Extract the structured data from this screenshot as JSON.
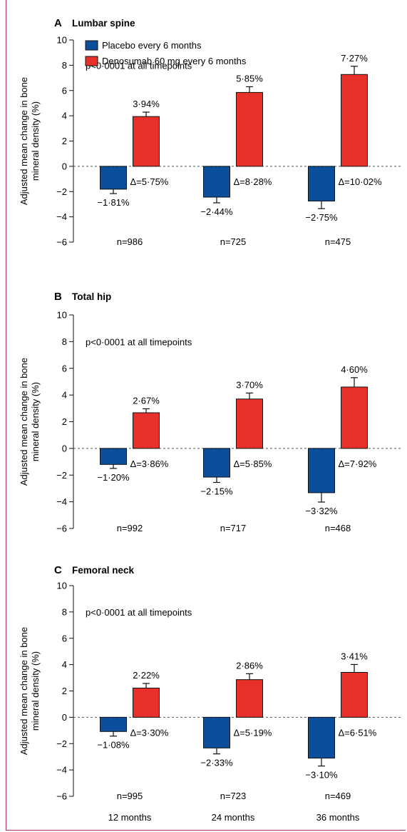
{
  "colors": {
    "placebo": "#0b4f9c",
    "denosumab": "#e8302a",
    "frame": "#b0306a"
  },
  "legend": {
    "placebo": "Placebo every 6 months",
    "denosumab": "Denosumab 60 mg every 6 months"
  },
  "ylabel": "Adjusted mean change in bone mineral density (%)",
  "x_labels": [
    "12 months",
    "24 months",
    "36 months"
  ],
  "chart_data": [
    {
      "type": "bar",
      "letter": "A",
      "title": "Lumbar spine",
      "annotation": "p<0·0001 at all timepoints",
      "categories": [
        "12 months",
        "24 months",
        "36 months"
      ],
      "ylim": [
        -6,
        10
      ],
      "yticks": [
        "−6",
        "−4",
        "−2",
        "0",
        "2",
        "4",
        "6",
        "8",
        "10"
      ],
      "series": [
        {
          "name": "Placebo every 6 months",
          "values": [
            -1.81,
            -2.44,
            -2.75
          ],
          "errors": [
            0.35,
            0.45,
            0.6
          ],
          "labels": [
            "−1·81%",
            "−2·44%",
            "−2·75%"
          ]
        },
        {
          "name": "Denosumab 60 mg every 6 months",
          "values": [
            3.94,
            5.85,
            7.27
          ],
          "errors": [
            0.35,
            0.45,
            0.65
          ],
          "labels": [
            "3·94%",
            "5·85%",
            "7·27%"
          ]
        }
      ],
      "deltas": [
        "Δ=5·75%",
        "Δ=8·28%",
        "Δ=10·02%"
      ],
      "n": [
        "n=986",
        "n=725",
        "n=475"
      ]
    },
    {
      "type": "bar",
      "letter": "B",
      "title": "Total hip",
      "annotation": "p<0·0001 at all timepoints",
      "categories": [
        "12 months",
        "24 months",
        "36 months"
      ],
      "ylim": [
        -6,
        10
      ],
      "yticks": [
        "−6",
        "−4",
        "−2",
        "0",
        "2",
        "4",
        "6",
        "8",
        "10"
      ],
      "series": [
        {
          "name": "Placebo every 6 months",
          "values": [
            -1.2,
            -2.15,
            -3.32
          ],
          "errors": [
            0.3,
            0.4,
            0.7
          ],
          "labels": [
            "−1·20%",
            "−2·15%",
            "−3·32%"
          ]
        },
        {
          "name": "Denosumab 60 mg every 6 months",
          "values": [
            2.67,
            3.7,
            4.6
          ],
          "errors": [
            0.3,
            0.45,
            0.7
          ],
          "labels": [
            "2·67%",
            "3·70%",
            "4·60%"
          ]
        }
      ],
      "deltas": [
        "Δ=3·86%",
        "Δ=5·85%",
        "Δ=7·92%"
      ],
      "n": [
        "n=992",
        "n=717",
        "n=468"
      ]
    },
    {
      "type": "bar",
      "letter": "C",
      "title": "Femoral neck",
      "annotation": "p<0·0001 at all timepoints",
      "categories": [
        "12 months",
        "24 months",
        "36 months"
      ],
      "ylim": [
        -6,
        10
      ],
      "yticks": [
        "−6",
        "−4",
        "−2",
        "0",
        "2",
        "4",
        "6",
        "8",
        "10"
      ],
      "series": [
        {
          "name": "Placebo every 6 months",
          "values": [
            -1.08,
            -2.33,
            -3.1
          ],
          "errors": [
            0.35,
            0.45,
            0.6
          ],
          "labels": [
            "−1·08%",
            "−2·33%",
            "−3·10%"
          ]
        },
        {
          "name": "Denosumab 60 mg every 6 months",
          "values": [
            2.22,
            2.86,
            3.41
          ],
          "errors": [
            0.35,
            0.45,
            0.6
          ],
          "labels": [
            "2·22%",
            "2·86%",
            "3·41%"
          ]
        }
      ],
      "deltas": [
        "Δ=3·30%",
        "Δ=5·19%",
        "Δ=6·51%"
      ],
      "n": [
        "n=995",
        "n=723",
        "n=469"
      ]
    }
  ]
}
